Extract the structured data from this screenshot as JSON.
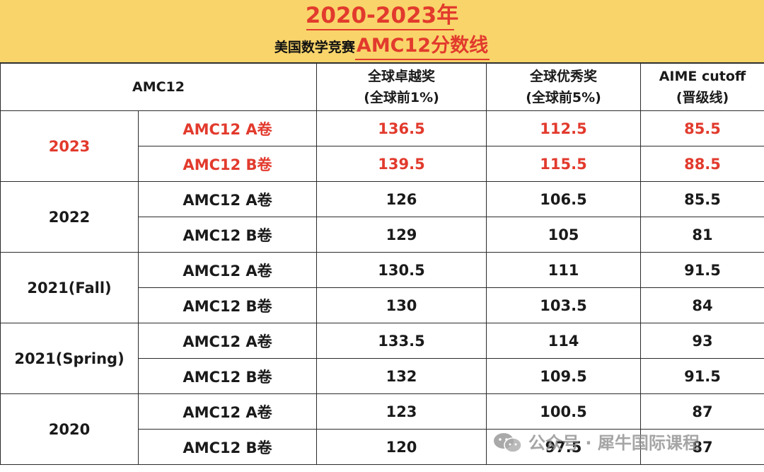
{
  "header": {
    "title": "2020-2023年",
    "subtitle_prefix": "美国数学竞赛",
    "subtitle_highlight": "AMC12分数线"
  },
  "table": {
    "corner_label": "AMC12",
    "columns": [
      {
        "line1": "全球卓越奖",
        "line2": "(全球前1%)"
      },
      {
        "line1": "全球优秀奖",
        "line2": "(全球前5%)"
      },
      {
        "line1": "AIME cutoff",
        "line2": "(晋级线)"
      }
    ],
    "groups": [
      {
        "year": "2023",
        "highlight": true,
        "rows": [
          {
            "exam": "AMC12 A卷",
            "distinction": "136.5",
            "honor": "112.5",
            "aime": "85.5"
          },
          {
            "exam": "AMC12 B卷",
            "distinction": "139.5",
            "honor": "115.5",
            "aime": "88.5"
          }
        ]
      },
      {
        "year": "2022",
        "highlight": false,
        "rows": [
          {
            "exam": "AMC12 A卷",
            "distinction": "126",
            "honor": "106.5",
            "aime": "85.5"
          },
          {
            "exam": "AMC12 B卷",
            "distinction": "129",
            "honor": "105",
            "aime": "81"
          }
        ]
      },
      {
        "year": "2021(Fall)",
        "highlight": false,
        "rows": [
          {
            "exam": "AMC12 A卷",
            "distinction": "130.5",
            "honor": "111",
            "aime": "91.5"
          },
          {
            "exam": "AMC12 B卷",
            "distinction": "130",
            "honor": "103.5",
            "aime": "84"
          }
        ]
      },
      {
        "year": "2021(Spring)",
        "highlight": false,
        "rows": [
          {
            "exam": "AMC12 A卷",
            "distinction": "133.5",
            "honor": "114",
            "aime": "93"
          },
          {
            "exam": "AMC12 B卷",
            "distinction": "132",
            "honor": "109.5",
            "aime": "91.5"
          }
        ]
      },
      {
        "year": "2020",
        "highlight": false,
        "rows": [
          {
            "exam": "AMC12 A卷",
            "distinction": "123",
            "honor": "100.5",
            "aime": "87"
          },
          {
            "exam": "AMC12 B卷",
            "distinction": "120",
            "honor": "97.5",
            "aime": "87"
          }
        ]
      }
    ]
  },
  "watermark": {
    "text": "公众号 · 犀牛国际课程",
    "icon": "wechat-icon"
  },
  "colors": {
    "header_bg": "#f9d46a",
    "accent_red": "#e23a2d",
    "grid_line": "#2b2b2b"
  }
}
